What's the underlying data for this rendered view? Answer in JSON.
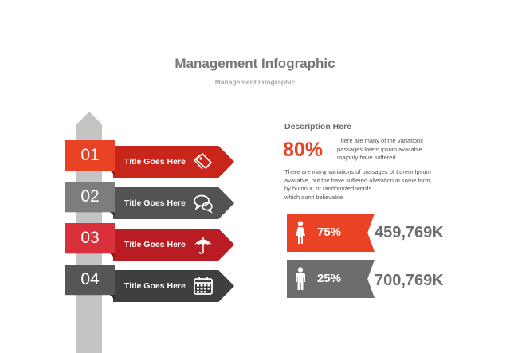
{
  "header": {
    "title": "Management Infographic",
    "subtitle": "Management Infographic"
  },
  "steps": [
    {
      "number": "01",
      "title": "Title Goes Here",
      "icon": "tag-icon",
      "num_color": "#e94225",
      "arrow_color": "#c8251b"
    },
    {
      "number": "02",
      "title": "Title Goes Here",
      "icon": "chat-bubbles-icon",
      "num_color": "#7d7d7d",
      "arrow_color": "#535353"
    },
    {
      "number": "03",
      "title": "Title Goes Here",
      "icon": "umbrella-icon",
      "num_color": "#d9313b",
      "arrow_color": "#b91c22"
    },
    {
      "number": "04",
      "title": "Title Goes Here",
      "icon": "calendar-icon",
      "num_color": "#565656",
      "arrow_color": "#3f3f3f"
    }
  ],
  "description": {
    "heading": "Description Here",
    "percent": "80%",
    "side_text": "There are many of the variations passages lorem ipsum available majority have suffered",
    "paragraph_lines": [
      "There are many variations of passages  of Lorem Ipsum",
      "available, but the have suffered alteration in some  form,",
      "by humour,  or randomized words",
      " which  don't believable"
    ]
  },
  "stats": [
    {
      "percent": "75%",
      "value": "459,769K",
      "icon": "female-person-icon",
      "color": "#e94225"
    },
    {
      "percent": "25%",
      "value": "700,769K",
      "icon": "male-person-icon",
      "color": "#6d6d6d"
    }
  ],
  "colors": {
    "accent_red": "#e94225",
    "pole_gray": "#c4c4c4",
    "text_gray": "#6c6c6c"
  }
}
